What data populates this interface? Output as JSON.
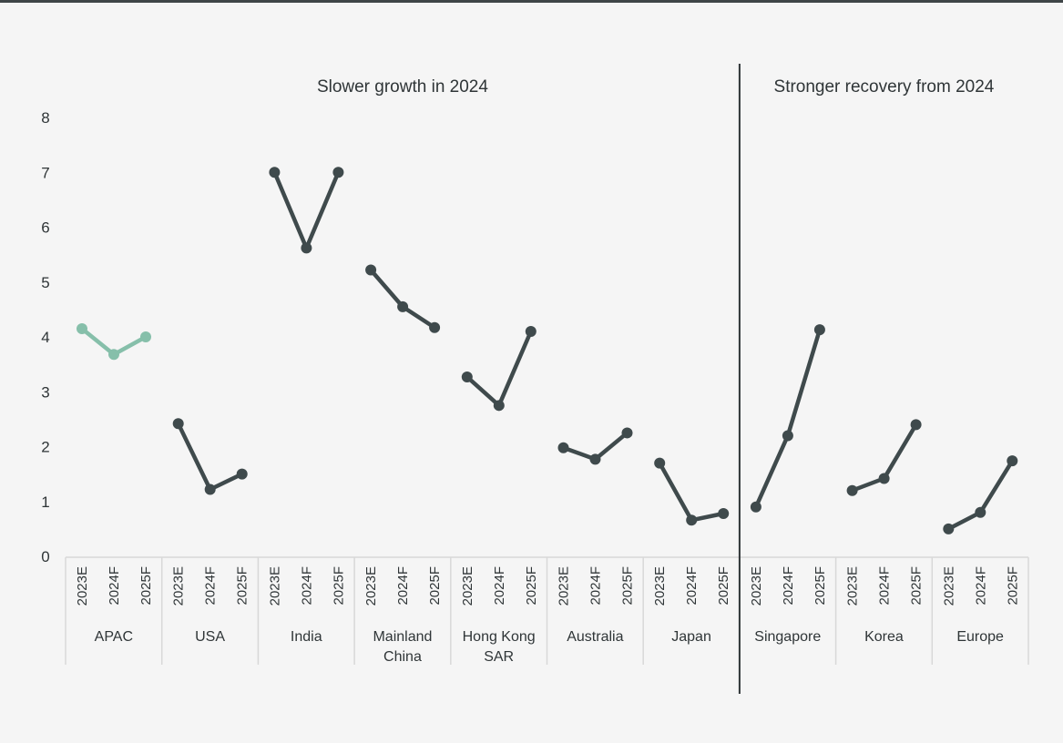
{
  "chart_data": {
    "type": "line",
    "title": "",
    "xlabel": "",
    "ylabel": "",
    "ylim": [
      0,
      8
    ],
    "y_ticks": [
      0,
      1,
      2,
      3,
      4,
      5,
      6,
      7,
      8
    ],
    "grid": false,
    "legend": "none",
    "periods": [
      "2023E",
      "2024F",
      "2025F"
    ],
    "sections": [
      {
        "title": "Slower growth in 2024",
        "categories": [
          "APAC",
          "USA",
          "India",
          "Mainland China",
          "Hong Kong SAR",
          "Australia",
          "Japan"
        ]
      },
      {
        "title": "Stronger recovery from 2024",
        "categories": [
          "Singapore",
          "Korea",
          "Europe"
        ]
      }
    ],
    "groups": [
      {
        "label": "APAC",
        "label_lines": [
          "APAC"
        ],
        "values": [
          4.15,
          3.68,
          4.0
        ],
        "highlight": true
      },
      {
        "label": "USA",
        "label_lines": [
          "USA"
        ],
        "values": [
          2.42,
          1.22,
          1.5
        ]
      },
      {
        "label": "India",
        "label_lines": [
          "India"
        ],
        "values": [
          7.0,
          5.62,
          7.0
        ]
      },
      {
        "label": "Mainland China",
        "label_lines": [
          "Mainland",
          "China"
        ],
        "values": [
          5.22,
          4.55,
          4.17
        ]
      },
      {
        "label": "Hong Kong SAR",
        "label_lines": [
          "Hong Kong",
          "SAR"
        ],
        "values": [
          3.27,
          2.75,
          4.1
        ]
      },
      {
        "label": "Australia",
        "label_lines": [
          "Australia"
        ],
        "values": [
          1.98,
          1.77,
          2.25
        ]
      },
      {
        "label": "Japan",
        "label_lines": [
          "Japan"
        ],
        "values": [
          1.7,
          0.66,
          0.78
        ]
      },
      {
        "label": "Singapore",
        "label_lines": [
          "Singapore"
        ],
        "values": [
          0.9,
          2.2,
          4.13
        ]
      },
      {
        "label": "Korea",
        "label_lines": [
          "Korea"
        ],
        "values": [
          1.2,
          1.42,
          2.4
        ]
      },
      {
        "label": "Europe",
        "label_lines": [
          "Europe"
        ],
        "values": [
          0.5,
          0.8,
          1.74
        ]
      }
    ]
  },
  "colors": {
    "series": "#3f4a4c",
    "highlight": "#86bfaa",
    "divider": "#2f3537",
    "separator": "#d8d8d8",
    "text": "#2f3537"
  }
}
